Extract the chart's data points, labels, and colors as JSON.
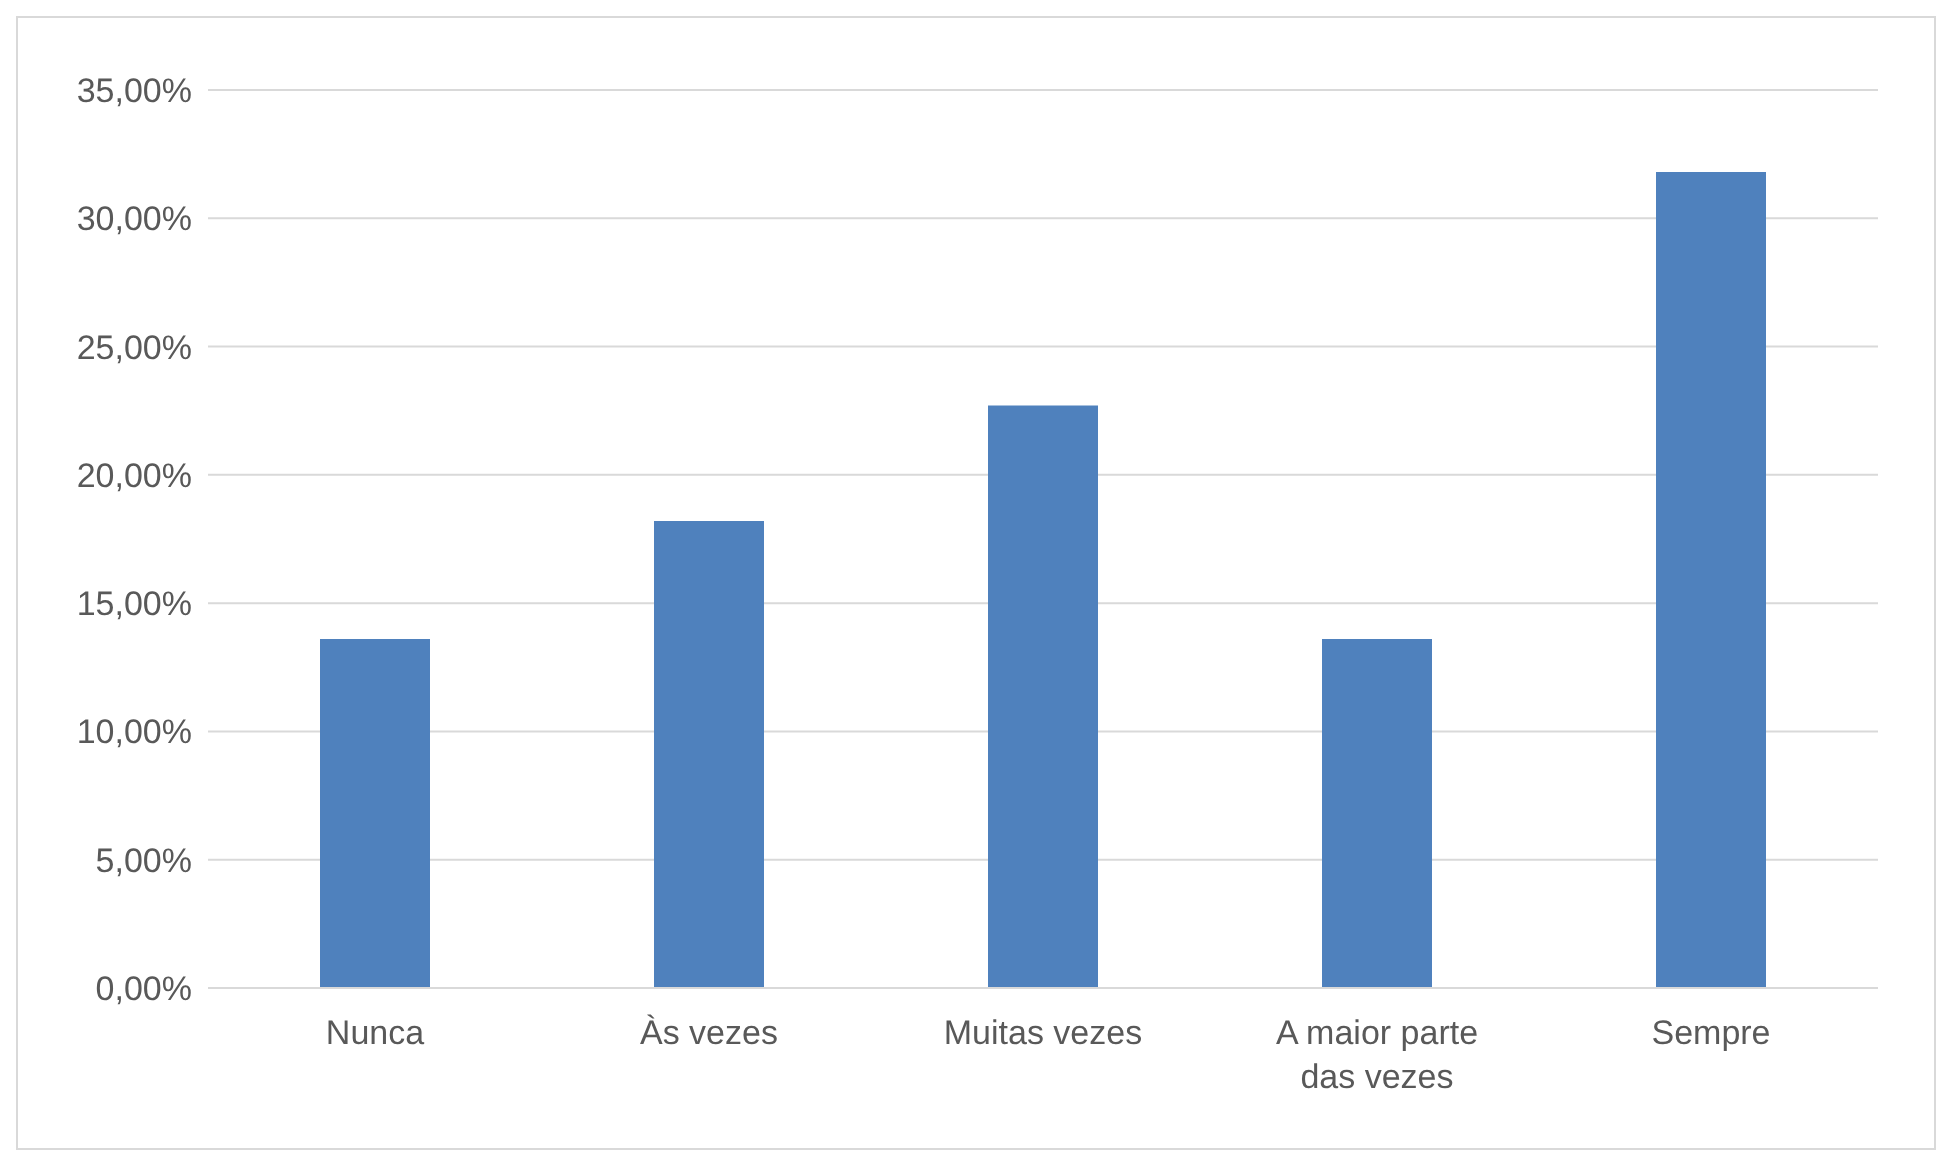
{
  "chart_data": {
    "type": "bar",
    "categories": [
      "Nunca",
      "Às vezes",
      "Muitas vezes",
      "A maior parte das vezes",
      "Sempre"
    ],
    "values": [
      13.6,
      18.2,
      22.7,
      13.6,
      31.8
    ],
    "color": "#4f81bd",
    "ylim": [
      0,
      35
    ],
    "yticks": [
      {
        "value": 0,
        "label": "0,00%"
      },
      {
        "value": 5,
        "label": "5,00%"
      },
      {
        "value": 10,
        "label": "10,00%"
      },
      {
        "value": 15,
        "label": "15,00%"
      },
      {
        "value": 20,
        "label": "20,00%"
      },
      {
        "value": 25,
        "label": "25,00%"
      },
      {
        "value": 30,
        "label": "30,00%"
      },
      {
        "value": 35,
        "label": "35,00%"
      }
    ],
    "grid": "y"
  }
}
